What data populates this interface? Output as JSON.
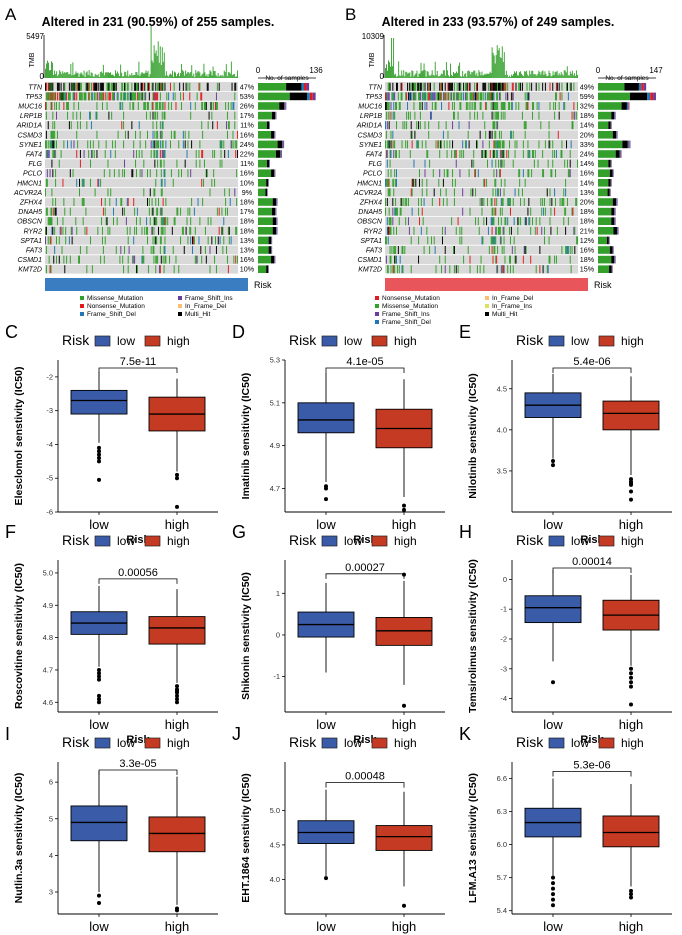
{
  "panel_a": {
    "letter": "A",
    "title": "Altered in 231 (90.59%) of 255 samples.",
    "tmb_label": "TMB",
    "tmb_max": "5497",
    "tmb_min": "0",
    "count_min": "0",
    "count_max": "136",
    "count_label": "No. of samples",
    "genes": [
      "TTN",
      "TP53",
      "MUC16",
      "LRP1B",
      "ARID1A",
      "CSMD3",
      "SYNE1",
      "FAT4",
      "FLG",
      "PCLO",
      "HMCN1",
      "ACVR2A",
      "ZFHX4",
      "DNAH5",
      "OBSCN",
      "RYR2",
      "SPTA1",
      "FAT3",
      "CSMD1",
      "KMT2D"
    ],
    "percents": [
      "47%",
      "53%",
      "26%",
      "17%",
      "11%",
      "16%",
      "24%",
      "22%",
      "11%",
      "16%",
      "10%",
      "9%",
      "18%",
      "17%",
      "18%",
      "18%",
      "13%",
      "13%",
      "16%",
      "10%"
    ],
    "risk_label": "Risk",
    "risk_color": "#3a7dc0",
    "legend": [
      "Missense_Mutation",
      "Frame_Shift_Ins",
      "Nonsense_Mutation",
      "In_Frame_Del",
      "Frame_Shift_Del",
      "Multi_Hit"
    ]
  },
  "panel_b": {
    "letter": "B",
    "title": "Altered in 233 (93.57%) of 249 samples.",
    "tmb_label": "TMB",
    "tmb_max": "10309",
    "tmb_min": "0",
    "count_min": "0",
    "count_max": "147",
    "count_label": "No. of samples",
    "genes": [
      "TTN",
      "TP53",
      "MUC16",
      "LRP1B",
      "ARID1A",
      "CSMD3",
      "SYNE1",
      "FAT4",
      "FLG",
      "PCLO",
      "HMCN1",
      "ACVR2A",
      "ZFHX4",
      "DNAH5",
      "OBSCN",
      "RYR2",
      "SPTA1",
      "FAT3",
      "CSMD1",
      "KMT2D"
    ],
    "percents": [
      "49%",
      "59%",
      "32%",
      "18%",
      "14%",
      "20%",
      "33%",
      "24%",
      "14%",
      "16%",
      "14%",
      "13%",
      "20%",
      "18%",
      "18%",
      "21%",
      "12%",
      "16%",
      "18%",
      "15%"
    ],
    "risk_label": "Risk",
    "risk_color": "#e8555a",
    "legend": [
      "Nonsense_Mutation",
      "In_Frame_Del",
      "Missense_Mutation",
      "In_Frame_Ins",
      "Frame_Shift_Ins",
      "Multi_Hit",
      "Frame_Shift_Del"
    ]
  },
  "mutation_colors": {
    "Missense_Mutation": "#33a02c",
    "Nonsense_Mutation": "#e31a1c",
    "Frame_Shift_Del": "#1f78b4",
    "Frame_Shift_Ins": "#6a3d9a",
    "In_Frame_Del": "#fdbf6f",
    "In_Frame_Ins": "#e0e060",
    "Multi_Hit": "#000000",
    "background": "#d9d9d9"
  },
  "box_colors": {
    "low": "#3a5ba8",
    "high": "#c53a23"
  },
  "legend_title": "Risk",
  "legend_low": "low",
  "legend_high": "high",
  "xlabel": "Risk",
  "chart_data": [
    {
      "letter": "C",
      "type": "box",
      "title": "Elesclomol sensitivity",
      "ylabel": "Elesclomol senstivity (IC50)",
      "categories": [
        "low",
        "high"
      ],
      "pvalue": "7.5e-11",
      "ylim": [
        -6,
        -1.5
      ],
      "yticks": [
        -2,
        -3,
        -4,
        -5,
        -6
      ],
      "ytick_labels": [
        "-2",
        "-3",
        "-4",
        "-5",
        "-6"
      ],
      "boxes": [
        {
          "q1": -3.1,
          "median": -2.7,
          "q3": -2.4,
          "whisker_low": -3.95,
          "whisker_high": -1.85,
          "outliers": [
            -4.1,
            -4.2,
            -4.3,
            -4.4,
            -4.5,
            -5.05
          ]
        },
        {
          "q1": -3.6,
          "median": -3.1,
          "q3": -2.6,
          "whisker_low": -4.8,
          "whisker_high": -2.05,
          "outliers": [
            -4.9,
            -5.0,
            -5.85
          ]
        }
      ]
    },
    {
      "letter": "D",
      "type": "box",
      "ylabel": "Imatinib sensitivity (IC50)",
      "categories": [
        "low",
        "high"
      ],
      "pvalue": "4.1e-05",
      "ylim": [
        4.59,
        5.3
      ],
      "yticks": [
        5.3,
        5.1,
        4.9,
        4.7
      ],
      "ytick_labels": [
        "5.3",
        "5.1",
        "4.9",
        "4.7"
      ],
      "boxes": [
        {
          "q1": 4.96,
          "median": 5.02,
          "q3": 5.1,
          "whisker_low": 4.73,
          "whisker_high": 5.24,
          "outliers": [
            4.71,
            4.7,
            4.65
          ]
        },
        {
          "q1": 4.89,
          "median": 4.98,
          "q3": 5.07,
          "whisker_low": 4.66,
          "whisker_high": 5.21,
          "outliers": [
            4.62,
            4.6
          ]
        }
      ]
    },
    {
      "letter": "E",
      "type": "box",
      "ylabel": "Nilotinib senstivity (IC50)",
      "categories": [
        "low",
        "high"
      ],
      "pvalue": "5.4e-06",
      "ylim": [
        3.0,
        4.85
      ],
      "yticks": [
        4.5,
        4.0,
        3.5
      ],
      "ytick_labels": [
        "4.5",
        "4.0",
        "3.5"
      ],
      "boxes": [
        {
          "q1": 4.15,
          "median": 4.3,
          "q3": 4.45,
          "whisker_low": 3.65,
          "whisker_high": 4.68,
          "outliers": [
            3.62,
            3.57
          ]
        },
        {
          "q1": 4.0,
          "median": 4.2,
          "q3": 4.35,
          "whisker_low": 3.45,
          "whisker_high": 4.65,
          "outliers": [
            3.4,
            3.37,
            3.35,
            3.33,
            3.25,
            3.15
          ]
        }
      ]
    },
    {
      "letter": "F",
      "type": "box",
      "ylabel": "Roscovitine sensitivity (IC50)",
      "categories": [
        "low",
        "high"
      ],
      "pvalue": "0.00056",
      "ylim": [
        4.57,
        5.04
      ],
      "yticks": [
        5.0,
        4.9,
        4.8,
        4.7,
        4.6
      ],
      "ytick_labels": [
        "5.0",
        "4.9",
        "4.8",
        "4.7",
        "4.6"
      ],
      "boxes": [
        {
          "q1": 4.81,
          "median": 4.845,
          "q3": 4.88,
          "whisker_low": 4.71,
          "whisker_high": 4.96,
          "outliers": [
            4.7,
            4.69,
            4.68,
            4.67,
            4.62,
            4.61,
            4.6
          ]
        },
        {
          "q1": 4.78,
          "median": 4.83,
          "q3": 4.865,
          "whisker_low": 4.66,
          "whisker_high": 4.95,
          "outliers": [
            4.65,
            4.64,
            4.635,
            4.63,
            4.62,
            4.61,
            4.6
          ]
        }
      ]
    },
    {
      "letter": "G",
      "type": "box",
      "ylabel": "Shikonin senstivity (IC50)",
      "categories": [
        "low",
        "high"
      ],
      "pvalue": "0.00027",
      "ylim": [
        -1.85,
        1.8
      ],
      "yticks": [
        1,
        0,
        -1
      ],
      "ytick_labels": [
        "1",
        "0",
        "-1"
      ],
      "boxes": [
        {
          "q1": -0.05,
          "median": 0.25,
          "q3": 0.55,
          "whisker_low": -0.9,
          "whisker_high": 1.25,
          "outliers": []
        },
        {
          "q1": -0.25,
          "median": 0.1,
          "q3": 0.42,
          "whisker_low": -1.2,
          "whisker_high": 1.3,
          "outliers": [
            1.45,
            -1.7
          ]
        }
      ]
    },
    {
      "letter": "H",
      "type": "box",
      "ylabel": "Temsirolimus sensitivity (IC50)",
      "categories": [
        "low",
        "high"
      ],
      "pvalue": "0.00014",
      "ylim": [
        -4.45,
        0.65
      ],
      "yticks": [
        0,
        -1,
        -2,
        -3,
        -4
      ],
      "ytick_labels": [
        "0",
        "-1",
        "-2",
        "-3",
        "-4"
      ],
      "boxes": [
        {
          "q1": -1.45,
          "median": -0.95,
          "q3": -0.55,
          "whisker_low": -2.75,
          "whisker_high": 0.3,
          "outliers": [
            -3.45
          ]
        },
        {
          "q1": -1.7,
          "median": -1.2,
          "q3": -0.7,
          "whisker_low": -2.9,
          "whisker_high": 0.15,
          "outliers": [
            -3.0,
            -3.15,
            -3.3,
            -3.45,
            -3.6,
            -4.2
          ]
        }
      ]
    },
    {
      "letter": "I",
      "type": "box",
      "ylabel": "Nutlin.3a sensitivity (IC50)",
      "categories": [
        "low",
        "high"
      ],
      "pvalue": "3.3e-05",
      "ylim": [
        2.4,
        6.55
      ],
      "yticks": [
        6,
        5,
        4,
        3
      ],
      "ytick_labels": [
        "6",
        "5",
        "4",
        "3"
      ],
      "boxes": [
        {
          "q1": 4.4,
          "median": 4.9,
          "q3": 5.35,
          "whisker_low": 3.0,
          "whisker_high": 6.3,
          "outliers": [
            2.9,
            2.7
          ]
        },
        {
          "q1": 4.1,
          "median": 4.6,
          "q3": 5.05,
          "whisker_low": 2.65,
          "whisker_high": 6.15,
          "outliers": [
            2.55,
            2.5
          ]
        }
      ]
    },
    {
      "letter": "J",
      "type": "box",
      "ylabel": "EHT.1864 senstivity (IC50)",
      "categories": [
        "low",
        "high"
      ],
      "pvalue": "0.00048",
      "ylim": [
        3.5,
        5.7
      ],
      "yticks": [
        5.0,
        4.5,
        4.0
      ],
      "ytick_labels": [
        "5.0",
        "4.5",
        "4.0"
      ],
      "boxes": [
        {
          "q1": 4.52,
          "median": 4.68,
          "q3": 4.85,
          "whisker_low": 4.05,
          "whisker_high": 5.3,
          "outliers": [
            4.02
          ]
        },
        {
          "q1": 4.42,
          "median": 4.62,
          "q3": 4.78,
          "whisker_low": 3.9,
          "whisker_high": 5.27,
          "outliers": [
            3.62
          ]
        }
      ]
    },
    {
      "letter": "K",
      "type": "box",
      "ylabel": "LFM.A13 sensitivity (IC50)",
      "categories": [
        "low",
        "high"
      ],
      "pvalue": "5.3e-06",
      "ylim": [
        5.37,
        6.75
      ],
      "yticks": [
        6.6,
        6.3,
        6.0,
        5.7,
        5.4
      ],
      "ytick_labels": [
        "6.6",
        "6.3",
        "6.0",
        "5.7",
        "5.4"
      ],
      "boxes": [
        {
          "q1": 6.07,
          "median": 6.2,
          "q3": 6.33,
          "whisker_low": 5.72,
          "whisker_high": 6.6,
          "outliers": [
            5.7,
            5.65,
            5.6,
            5.55,
            5.5,
            5.45
          ]
        },
        {
          "q1": 5.98,
          "median": 6.11,
          "q3": 6.26,
          "whisker_low": 5.62,
          "whisker_high": 6.55,
          "outliers": [
            5.58,
            5.55,
            5.52
          ]
        }
      ]
    }
  ]
}
